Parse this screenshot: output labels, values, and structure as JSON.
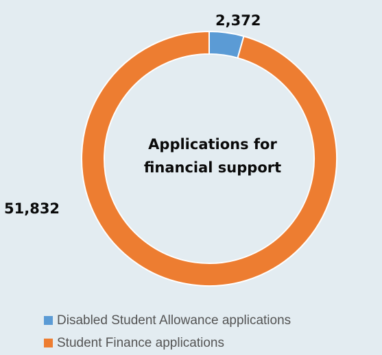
{
  "chart_data": {
    "type": "pie",
    "donut": true,
    "title": "Applications for financial support",
    "title_lines": [
      "Applications for",
      "financial support"
    ],
    "categories": [
      "Disabled Student Allowance applications",
      "Student Finance applications"
    ],
    "values": [
      2372,
      51832
    ],
    "value_labels": [
      "2,372",
      "51,832"
    ],
    "colors": [
      "#5b9bd5",
      "#ed7d31"
    ],
    "legend_position": "bottom-left"
  }
}
